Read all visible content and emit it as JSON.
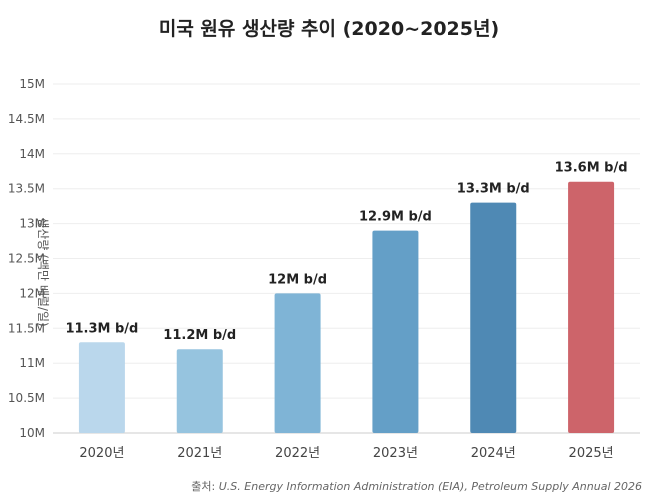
{
  "chart_data": {
    "type": "bar",
    "title": "미국 원유 생산량 추이 (2020~2025년)",
    "xlabel": "",
    "ylabel": "생산량 (백만 배럴/일)",
    "categories": [
      "2020년",
      "2021년",
      "2022년",
      "2023년",
      "2024년",
      "2025년"
    ],
    "values": [
      11.3,
      11.2,
      12.0,
      12.9,
      13.3,
      13.6
    ],
    "data_labels": [
      "11.3M b/d",
      "11.2M b/d",
      "12M b/d",
      "12.9M b/d",
      "13.3M b/d",
      "13.6M b/d"
    ],
    "colors": [
      "#bad7ec",
      "#96c4df",
      "#7fb4d6",
      "#649fc7",
      "#4f89b4",
      "#cd646a"
    ],
    "ylim": [
      10,
      15
    ],
    "yticks": [
      10,
      10.5,
      11,
      11.5,
      12,
      12.5,
      13,
      13.5,
      14,
      14.5,
      15
    ],
    "ytick_labels": [
      "10M",
      "10.5M",
      "11M",
      "11.5M",
      "12M",
      "12.5M",
      "13M",
      "13.5M",
      "14M",
      "14.5M",
      "15M"
    ],
    "grid": true,
    "source_label": "출처:",
    "source_text": "U.S. Energy Information Administration (EIA), Petroleum Supply Annual 2026"
  }
}
